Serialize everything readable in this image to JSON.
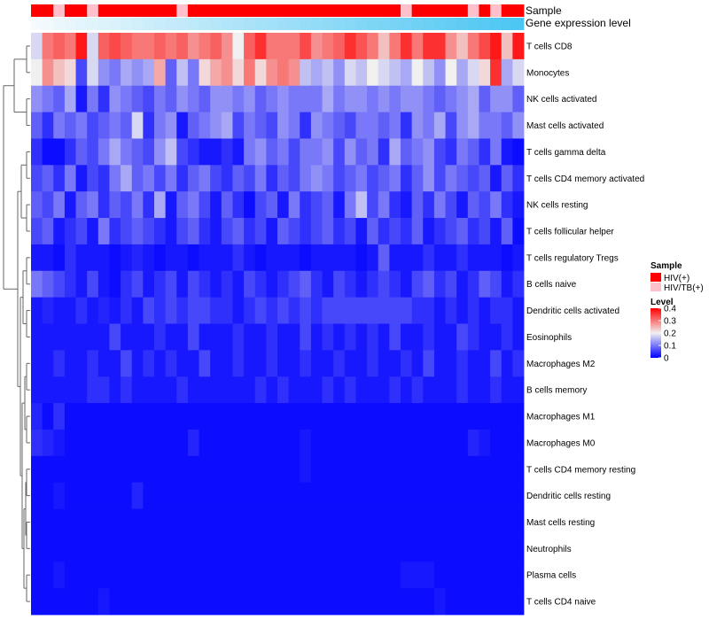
{
  "chart_data": {
    "type": "heatmap",
    "annotation": {
      "sample_label": "Sample",
      "expression_label": "Gene expression level",
      "sample_groups": [
        "HIV(+)",
        "HIV(+)",
        "HIV/TB(+)",
        "HIV(+)",
        "HIV(+)",
        "HIV/TB(+)",
        "HIV(+)",
        "HIV(+)",
        "HIV(+)",
        "HIV(+)",
        "HIV(+)",
        "HIV(+)",
        "HIV(+)",
        "HIV/TB(+)",
        "HIV(+)",
        "HIV(+)",
        "HIV(+)",
        "HIV(+)",
        "HIV(+)",
        "HIV(+)",
        "HIV(+)",
        "HIV(+)",
        "HIV(+)",
        "HIV(+)",
        "HIV(+)",
        "HIV(+)",
        "HIV(+)",
        "HIV(+)",
        "HIV(+)",
        "HIV(+)",
        "HIV(+)",
        "HIV(+)",
        "HIV(+)",
        "HIV/TB(+)",
        "HIV(+)",
        "HIV(+)",
        "HIV(+)",
        "HIV(+)",
        "HIV(+)",
        "HIV/TB(+)",
        "HIV(+)",
        "HIV/TB(+)",
        "HIV(+)",
        "HIV(+)"
      ],
      "expression_gradient": [
        0,
        0.02,
        0.05,
        0.07,
        0.1,
        0.12,
        0.14,
        0.16,
        0.19,
        0.21,
        0.24,
        0.26,
        0.28,
        0.3,
        0.33,
        0.35,
        0.37,
        0.4,
        0.42,
        0.44,
        0.47,
        0.49,
        0.51,
        0.53,
        0.56,
        0.58,
        0.6,
        0.63,
        0.65,
        0.67,
        0.7,
        0.72,
        0.74,
        0.77,
        0.79,
        0.81,
        0.84,
        0.86,
        0.88,
        0.91,
        0.93,
        0.95,
        0.98,
        1.0
      ]
    },
    "rows": [
      "T cells CD8",
      "Monocytes",
      "NK cells activated",
      "Mast cells activated",
      "T cells gamma delta",
      "T cells CD4 memory activated",
      "NK cells resting",
      "T cells follicular helper",
      "T cells regulatory  Tregs",
      "B cells naive",
      "Dendritic cells activated",
      "Eosinophils",
      "Macrophages M2",
      "B cells memory",
      "Macrophages M1",
      "Macrophages M0",
      "T cells CD4 memory resting",
      "Dendritic cells resting",
      "Mast cells resting",
      "Neutrophils",
      "Plasma cells",
      "T cells CD4 naive"
    ],
    "values": [
      [
        0.18,
        0.3,
        0.32,
        0.3,
        0.38,
        0.18,
        0.32,
        0.34,
        0.32,
        0.3,
        0.3,
        0.32,
        0.3,
        0.32,
        0.28,
        0.3,
        0.32,
        0.28,
        0.2,
        0.32,
        0.36,
        0.3,
        0.3,
        0.3,
        0.34,
        0.28,
        0.3,
        0.32,
        0.36,
        0.33,
        0.3,
        0.24,
        0.3,
        0.36,
        0.3,
        0.36,
        0.36,
        0.28,
        0.24,
        0.3,
        0.34,
        0.38,
        0.24,
        0.38
      ],
      [
        0.2,
        0.28,
        0.24,
        0.22,
        0.06,
        0.18,
        0.12,
        0.1,
        0.14,
        0.12,
        0.14,
        0.26,
        0.08,
        0.16,
        0.1,
        0.22,
        0.26,
        0.28,
        0.22,
        0.3,
        0.22,
        0.28,
        0.3,
        0.28,
        0.16,
        0.14,
        0.16,
        0.12,
        0.18,
        0.16,
        0.2,
        0.18,
        0.16,
        0.14,
        0.2,
        0.16,
        0.12,
        0.2,
        0.14,
        0.18,
        0.22,
        0.36,
        0.14,
        0.18
      ],
      [
        0.12,
        0.1,
        0.08,
        0.14,
        0.02,
        0.1,
        0.04,
        0.12,
        0.1,
        0.08,
        0.06,
        0.1,
        0.08,
        0.12,
        0.1,
        0.08,
        0.12,
        0.12,
        0.1,
        0.12,
        0.08,
        0.1,
        0.12,
        0.1,
        0.1,
        0.1,
        0.14,
        0.1,
        0.12,
        0.12,
        0.1,
        0.12,
        0.1,
        0.12,
        0.12,
        0.1,
        0.08,
        0.1,
        0.12,
        0.14,
        0.08,
        0.12,
        0.12,
        0.08
      ],
      [
        0.08,
        0.04,
        0.1,
        0.08,
        0.1,
        0.06,
        0.08,
        0.1,
        0.08,
        0.18,
        0.04,
        0.1,
        0.12,
        0.02,
        0.08,
        0.1,
        0.12,
        0.14,
        0.06,
        0.1,
        0.08,
        0.06,
        0.12,
        0.1,
        0.04,
        0.12,
        0.1,
        0.08,
        0.06,
        0.1,
        0.1,
        0.08,
        0.1,
        0.04,
        0.12,
        0.1,
        0.14,
        0.06,
        0.12,
        0.14,
        0.1,
        0.1,
        0.08,
        0.12
      ],
      [
        0.04,
        0.01,
        0.01,
        0.04,
        0.08,
        0.06,
        0.1,
        0.14,
        0.1,
        0.08,
        0.06,
        0.12,
        0.16,
        0.06,
        0.04,
        0.02,
        0.02,
        0.04,
        0.02,
        0.1,
        0.12,
        0.08,
        0.1,
        0.06,
        0.1,
        0.1,
        0.12,
        0.06,
        0.12,
        0.08,
        0.1,
        0.04,
        0.14,
        0.08,
        0.1,
        0.12,
        0.06,
        0.04,
        0.1,
        0.08,
        0.04,
        0.1,
        0.02,
        0.01
      ],
      [
        0.06,
        0.08,
        0.04,
        0.1,
        0.02,
        0.06,
        0.04,
        0.1,
        0.14,
        0.08,
        0.1,
        0.06,
        0.1,
        0.04,
        0.08,
        0.1,
        0.06,
        0.04,
        0.08,
        0.06,
        0.1,
        0.04,
        0.08,
        0.06,
        0.1,
        0.12,
        0.1,
        0.06,
        0.08,
        0.1,
        0.06,
        0.08,
        0.1,
        0.04,
        0.08,
        0.12,
        0.06,
        0.1,
        0.08,
        0.06,
        0.08,
        0.02,
        0.08,
        0.04
      ],
      [
        0.08,
        0.06,
        0.1,
        0.02,
        0.08,
        0.1,
        0.04,
        0.08,
        0.06,
        0.1,
        0.04,
        0.14,
        0.02,
        0.08,
        0.1,
        0.06,
        0.02,
        0.08,
        0.04,
        0.01,
        0.06,
        0.08,
        0.02,
        0.1,
        0.04,
        0.06,
        0.08,
        0.02,
        0.1,
        0.16,
        0.06,
        0.1,
        0.04,
        0.02,
        0.08,
        0.04,
        0.1,
        0.06,
        0.02,
        0.08,
        0.06,
        0.1,
        0.04,
        0.02
      ],
      [
        0.06,
        0.08,
        0.02,
        0.04,
        0.06,
        0.02,
        0.1,
        0.04,
        0.06,
        0.08,
        0.06,
        0.04,
        0.02,
        0.06,
        0.08,
        0.04,
        0.02,
        0.06,
        0.08,
        0.04,
        0.06,
        0.02,
        0.08,
        0.06,
        0.04,
        0.06,
        0.08,
        0.04,
        0.06,
        0.02,
        0.08,
        0.04,
        0.06,
        0.04,
        0.08,
        0.02,
        0.04,
        0.06,
        0.08,
        0.04,
        0.06,
        0.02,
        0.08,
        0.01
      ],
      [
        0.02,
        0.02,
        0.01,
        0.04,
        0.02,
        0.02,
        0.02,
        0.01,
        0.02,
        0.03,
        0.02,
        0.01,
        0.02,
        0.02,
        0.01,
        0.02,
        0.02,
        0.02,
        0.04,
        0.02,
        0.01,
        0.02,
        0.02,
        0.02,
        0.01,
        0.02,
        0.02,
        0.02,
        0.02,
        0.01,
        0.02,
        0.08,
        0.02,
        0.02,
        0.02,
        0.04,
        0.02,
        0.02,
        0.04,
        0.02,
        0.02,
        0.02,
        0.01,
        0.02
      ],
      [
        0.1,
        0.08,
        0.06,
        0.04,
        0.02,
        0.06,
        0.02,
        0.01,
        0.04,
        0.06,
        0.02,
        0.04,
        0.06,
        0.02,
        0.06,
        0.04,
        0.02,
        0.04,
        0.02,
        0.06,
        0.04,
        0.02,
        0.04,
        0.06,
        0.08,
        0.04,
        0.02,
        0.06,
        0.04,
        0.02,
        0.04,
        0.06,
        0.04,
        0.02,
        0.06,
        0.08,
        0.04,
        0.06,
        0.02,
        0.04,
        0.08,
        0.06,
        0.02,
        0.04
      ],
      [
        0.02,
        0.03,
        0.02,
        0.02,
        0.04,
        0.02,
        0.03,
        0.02,
        0.04,
        0.02,
        0.06,
        0.04,
        0.06,
        0.04,
        0.06,
        0.06,
        0.04,
        0.04,
        0.02,
        0.04,
        0.06,
        0.04,
        0.06,
        0.04,
        0.06,
        0.04,
        0.06,
        0.06,
        0.06,
        0.06,
        0.06,
        0.06,
        0.06,
        0.06,
        0.04,
        0.04,
        0.02,
        0.04,
        0.02,
        0.04,
        0.02,
        0.04,
        0.04,
        0.02
      ],
      [
        0.02,
        0.02,
        0.02,
        0.02,
        0.02,
        0.02,
        0.02,
        0.06,
        0.02,
        0.02,
        0.02,
        0.04,
        0.02,
        0.02,
        0.06,
        0.02,
        0.02,
        0.02,
        0.04,
        0.02,
        0.02,
        0.04,
        0.02,
        0.02,
        0.06,
        0.02,
        0.04,
        0.02,
        0.04,
        0.02,
        0.04,
        0.02,
        0.06,
        0.02,
        0.02,
        0.04,
        0.02,
        0.02,
        0.06,
        0.04,
        0.02,
        0.02,
        0.04,
        0.02
      ],
      [
        0.02,
        0.02,
        0.04,
        0.02,
        0.02,
        0.04,
        0.02,
        0.02,
        0.06,
        0.02,
        0.04,
        0.02,
        0.04,
        0.02,
        0.02,
        0.06,
        0.02,
        0.02,
        0.04,
        0.02,
        0.02,
        0.04,
        0.02,
        0.02,
        0.04,
        0.02,
        0.02,
        0.04,
        0.02,
        0.02,
        0.04,
        0.02,
        0.02,
        0.04,
        0.02,
        0.06,
        0.02,
        0.02,
        0.04,
        0.02,
        0.02,
        0.06,
        0.02,
        0.04
      ],
      [
        0.02,
        0.02,
        0.02,
        0.02,
        0.02,
        0.04,
        0.04,
        0.02,
        0.04,
        0.02,
        0.02,
        0.02,
        0.02,
        0.04,
        0.02,
        0.02,
        0.02,
        0.02,
        0.02,
        0.02,
        0.04,
        0.02,
        0.04,
        0.02,
        0.02,
        0.02,
        0.04,
        0.02,
        0.04,
        0.02,
        0.02,
        0.02,
        0.04,
        0.02,
        0.04,
        0.02,
        0.02,
        0.02,
        0.04,
        0.02,
        0.02,
        0.04,
        0.02,
        0.02
      ],
      [
        0.03,
        0.01,
        0.04,
        0.01,
        0.01,
        0.01,
        0.01,
        0.01,
        0.01,
        0.01,
        0.01,
        0.01,
        0.01,
        0.01,
        0.01,
        0.01,
        0.01,
        0.01,
        0.01,
        0.01,
        0.01,
        0.01,
        0.01,
        0.01,
        0.01,
        0.01,
        0.01,
        0.01,
        0.01,
        0.01,
        0.01,
        0.01,
        0.01,
        0.01,
        0.01,
        0.01,
        0.01,
        0.01,
        0.01,
        0.01,
        0.01,
        0.01,
        0.01,
        0.01
      ],
      [
        0.04,
        0.03,
        0.02,
        0.01,
        0.01,
        0.01,
        0.01,
        0.01,
        0.01,
        0.01,
        0.01,
        0.01,
        0.01,
        0.01,
        0.03,
        0.01,
        0.01,
        0.01,
        0.01,
        0.01,
        0.01,
        0.01,
        0.01,
        0.01,
        0.02,
        0.01,
        0.01,
        0.01,
        0.01,
        0.01,
        0.01,
        0.01,
        0.01,
        0.01,
        0.01,
        0.01,
        0.01,
        0.01,
        0.01,
        0.03,
        0.02,
        0.01,
        0.01,
        0.01
      ],
      [
        0.01,
        0.01,
        0.01,
        0.01,
        0.01,
        0.01,
        0.01,
        0.01,
        0.01,
        0.01,
        0.01,
        0.01,
        0.01,
        0.01,
        0.01,
        0.01,
        0.01,
        0.01,
        0.01,
        0.01,
        0.01,
        0.01,
        0.01,
        0.01,
        0.02,
        0.01,
        0.01,
        0.01,
        0.01,
        0.01,
        0.01,
        0.01,
        0.01,
        0.01,
        0.01,
        0.01,
        0.01,
        0.01,
        0.01,
        0.01,
        0.01,
        0.01,
        0.01,
        0.01
      ],
      [
        0.01,
        0.01,
        0.02,
        0.01,
        0.01,
        0.01,
        0.01,
        0.01,
        0.01,
        0.03,
        0.01,
        0.01,
        0.01,
        0.01,
        0.01,
        0.01,
        0.01,
        0.01,
        0.01,
        0.01,
        0.01,
        0.01,
        0.01,
        0.01,
        0.01,
        0.01,
        0.01,
        0.01,
        0.01,
        0.01,
        0.01,
        0.01,
        0.01,
        0.01,
        0.01,
        0.01,
        0.01,
        0.01,
        0.01,
        0.01,
        0.01,
        0.01,
        0.01,
        0.01
      ],
      [
        0.01,
        0.01,
        0.01,
        0.01,
        0.01,
        0.01,
        0.01,
        0.01,
        0.01,
        0.01,
        0.01,
        0.01,
        0.01,
        0.01,
        0.01,
        0.01,
        0.01,
        0.01,
        0.01,
        0.01,
        0.01,
        0.01,
        0.01,
        0.01,
        0.01,
        0.01,
        0.01,
        0.01,
        0.01,
        0.01,
        0.01,
        0.01,
        0.01,
        0.01,
        0.01,
        0.01,
        0.01,
        0.01,
        0.01,
        0.01,
        0.01,
        0.01,
        0.01,
        0.01
      ],
      [
        0.01,
        0.01,
        0.01,
        0.01,
        0.01,
        0.01,
        0.01,
        0.01,
        0.01,
        0.01,
        0.01,
        0.01,
        0.01,
        0.01,
        0.01,
        0.01,
        0.01,
        0.01,
        0.01,
        0.01,
        0.01,
        0.01,
        0.01,
        0.01,
        0.01,
        0.01,
        0.01,
        0.01,
        0.01,
        0.01,
        0.01,
        0.01,
        0.01,
        0.01,
        0.01,
        0.01,
        0.01,
        0.01,
        0.01,
        0.01,
        0.01,
        0.01,
        0.01,
        0.01
      ],
      [
        0.01,
        0.01,
        0.02,
        0.01,
        0.01,
        0.01,
        0.01,
        0.01,
        0.01,
        0.01,
        0.01,
        0.01,
        0.01,
        0.01,
        0.01,
        0.01,
        0.01,
        0.01,
        0.01,
        0.01,
        0.01,
        0.01,
        0.01,
        0.01,
        0.01,
        0.01,
        0.01,
        0.01,
        0.01,
        0.01,
        0.01,
        0.01,
        0.01,
        0.02,
        0.02,
        0.02,
        0.01,
        0.01,
        0.01,
        0.01,
        0.01,
        0.01,
        0.01,
        0.01
      ],
      [
        0.01,
        0.01,
        0.01,
        0.01,
        0.01,
        0.01,
        0.02,
        0.01,
        0.01,
        0.01,
        0.01,
        0.01,
        0.01,
        0.01,
        0.01,
        0.01,
        0.01,
        0.01,
        0.01,
        0.01,
        0.01,
        0.01,
        0.01,
        0.01,
        0.01,
        0.01,
        0.01,
        0.01,
        0.01,
        0.01,
        0.01,
        0.01,
        0.01,
        0.01,
        0.01,
        0.01,
        0.02,
        0.01,
        0.01,
        0.01,
        0.01,
        0.01,
        0.01,
        0.01
      ]
    ],
    "color_scale": {
      "low": "#0000ff",
      "mid": "#f0f0f0",
      "high": "#ff0000",
      "min": 0,
      "max": 0.4,
      "midpoint": 0.2
    },
    "legend": {
      "sample_title": "Sample",
      "sample_items": [
        {
          "label": "HIV(+)",
          "color": "#ff0000"
        },
        {
          "label": "HIV/TB(+)",
          "color": "#ffc0cb"
        }
      ],
      "level_title": "Level",
      "level_ticks": [
        0.4,
        0.3,
        0.2,
        0.1,
        0
      ],
      "level_tick_labels": [
        "0.4",
        "0.3",
        "0.2",
        "0.1",
        "0"
      ]
    },
    "gradient_colors": {
      "start": "#f4fafd",
      "end": "#4cc6f2"
    },
    "dendrogram": {
      "merges": [
        [
          0,
          1
        ],
        [
          2,
          3
        ],
        [
          4,
          5
        ],
        [
          6,
          7
        ],
        [
          12,
          13
        ],
        [
          14,
          15
        ],
        [
          18,
          19
        ],
        [
          20,
          21
        ],
        [
          8,
          9
        ],
        [
          10,
          11
        ],
        [
          16,
          17
        ]
      ]
    }
  }
}
